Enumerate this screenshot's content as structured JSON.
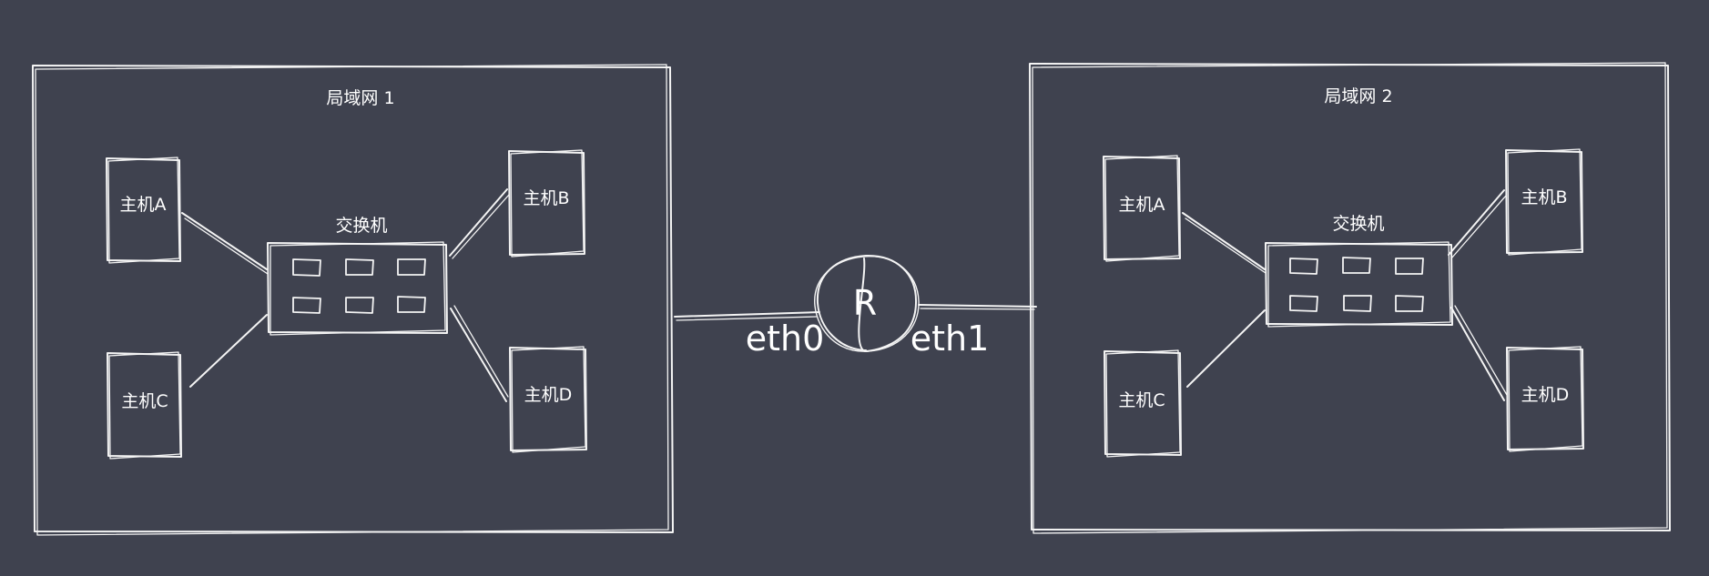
{
  "diagram": {
    "lan1": {
      "title": "局域网 1",
      "switch_label": "交换机",
      "hosts": {
        "a": "主机A",
        "b": "主机B",
        "c": "主机C",
        "d": "主机D"
      }
    },
    "lan2": {
      "title": "局域网 2",
      "switch_label": "交换机",
      "hosts": {
        "a": "主机A",
        "b": "主机B",
        "c": "主机C",
        "d": "主机D"
      }
    },
    "router": {
      "label": "R",
      "eth0": "eth0",
      "eth1": "eth1"
    },
    "colors": {
      "background": "#3f424f",
      "stroke": "#f4f4f4",
      "text": "#ffffff"
    }
  }
}
